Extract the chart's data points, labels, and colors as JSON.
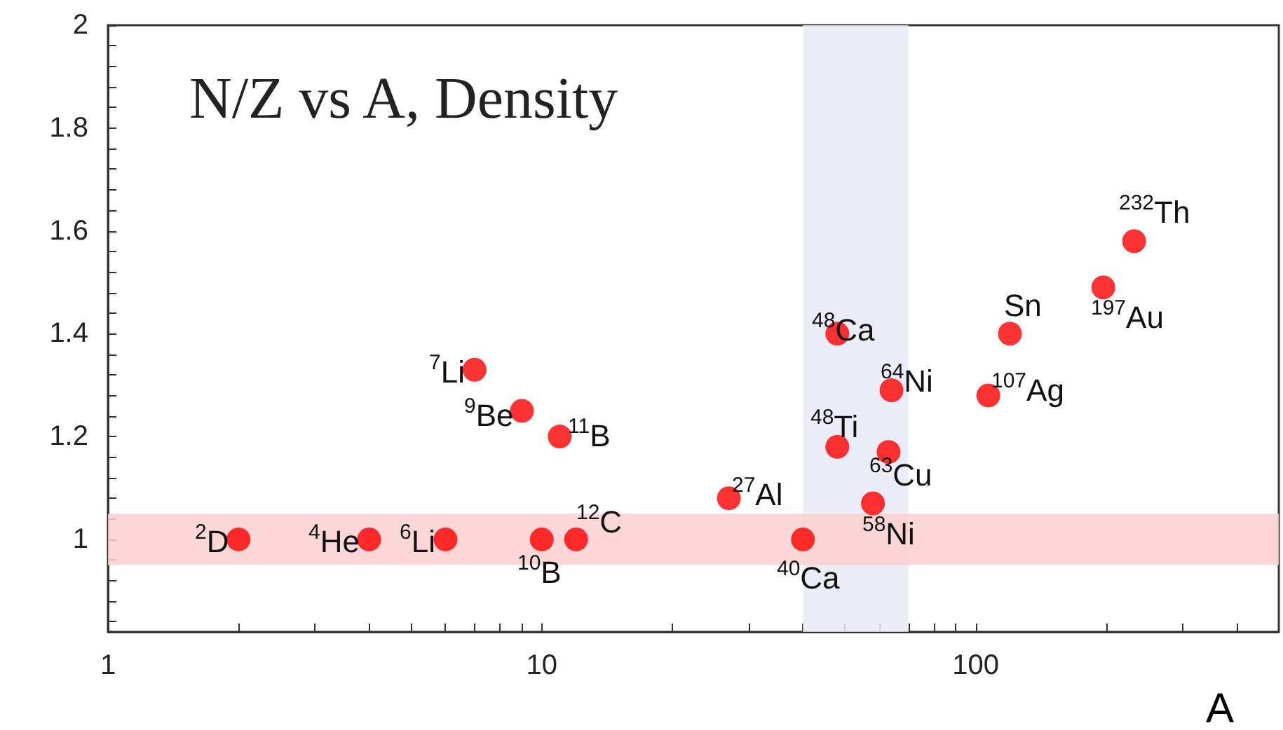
{
  "chart_data": {
    "type": "scatter",
    "title": "N/Z vs A, Density",
    "xlabel": "A",
    "log": "x",
    "marker": "circle",
    "grid": false,
    "xlim": [
      1,
      500
    ],
    "xticks": [
      1,
      {
        "value": 2,
        "label": null
      },
      {
        "value": 3,
        "label": null
      },
      {
        "value": 4,
        "label": null
      },
      {
        "value": 5,
        "label": null
      },
      {
        "value": 6,
        "label": null
      },
      {
        "value": 7,
        "label": null
      },
      {
        "value": 8,
        "label": null
      },
      {
        "value": 9,
        "label": null
      },
      10,
      {
        "value": 20,
        "label": null
      },
      {
        "value": 30,
        "label": null
      },
      {
        "value": 40,
        "label": null
      },
      {
        "value": 50,
        "label": null
      },
      {
        "value": 60,
        "label": null
      },
      {
        "value": 70,
        "label": null
      },
      {
        "value": 80,
        "label": null
      },
      {
        "value": 90,
        "label": null
      },
      100,
      {
        "value": 200,
        "label": null
      },
      {
        "value": 300,
        "label": null
      },
      {
        "value": 400,
        "label": null
      }
    ],
    "ylim": [
      0.82,
      2
    ],
    "yticks": [
      {
        "value": 0.84,
        "label": null
      },
      {
        "value": 0.88,
        "label": null
      },
      {
        "value": 0.92,
        "label": null
      },
      {
        "value": 0.96,
        "label": null
      },
      1,
      {
        "value": 1.04,
        "label": null
      },
      {
        "value": 1.08,
        "label": null
      },
      {
        "value": 1.12,
        "label": null
      },
      {
        "value": 1.16,
        "label": null
      },
      1.2,
      {
        "value": 1.24,
        "label": null
      },
      {
        "value": 1.28,
        "label": null
      },
      {
        "value": 1.32,
        "label": null
      },
      {
        "value": 1.36,
        "label": null
      },
      1.4,
      {
        "value": 1.44,
        "label": null
      },
      {
        "value": 1.48,
        "label": null
      },
      {
        "value": 1.52,
        "label": null
      },
      {
        "value": 1.56,
        "label": null
      },
      1.6,
      {
        "value": 1.64,
        "label": null
      },
      {
        "value": 1.68,
        "label": null
      },
      {
        "value": 1.72,
        "label": null
      },
      {
        "value": 1.76,
        "label": null
      },
      1.8,
      {
        "value": 1.84,
        "label": null
      },
      {
        "value": 1.88,
        "label": null
      },
      {
        "value": 1.92,
        "label": null
      },
      {
        "value": 1.96,
        "label": null
      },
      2
    ],
    "bands": [
      {
        "axis": "x",
        "from": 40,
        "to": 70,
        "color": "#e9e9f6"
      },
      {
        "axis": "y",
        "from": 0.95,
        "to": 1.05,
        "color": "#fdd0d0"
      }
    ],
    "series": [
      {
        "color": "#ff0000",
        "x": [
          2,
          4,
          6,
          7,
          9,
          11,
          10,
          12,
          27,
          40,
          48,
          48,
          58,
          63,
          64,
          107,
          120,
          197,
          232
        ],
        "values": [
          1,
          1,
          1,
          1.33,
          1.25,
          1.2,
          1,
          1,
          1.08,
          1,
          1.4,
          1.18,
          1.07,
          1.17,
          1.29,
          1.28,
          1.4,
          1.49,
          1.58
        ]
      }
    ],
    "annotations": [
      {
        "text": "$^{2}$D",
        "x": 2,
        "y": 1
      },
      {
        "text": "$^{4}$He",
        "x": 4,
        "y": 1
      },
      {
        "text": "$^{6}$Li",
        "x": 6,
        "y": 1
      },
      {
        "text": "$^{7}$Li",
        "x": 7,
        "y": 1.33
      },
      {
        "text": "$^{9}$Be",
        "x": 9,
        "y": 1.25
      },
      {
        "text": "$^{11}$B",
        "x": 11,
        "y": 1.2
      },
      {
        "text": "$^{10}$B",
        "x": 10,
        "y": 1
      },
      {
        "text": "$^{12}$C",
        "x": 12,
        "y": 1
      },
      {
        "text": "$^{27}$Al",
        "x": 27,
        "y": 1.08
      },
      {
        "text": "$^{40}$Ca",
        "x": 40,
        "y": 1
      },
      {
        "text": "$^{48}$Ca",
        "x": 48,
        "y": 1.4
      },
      {
        "text": "$^{48}$Ti",
        "x": 48,
        "y": 1.18
      },
      {
        "text": "$^{58}$Ni",
        "x": 58,
        "y": 1.07
      },
      {
        "text": "$^{63}$Cu",
        "x": 63,
        "y": 1.17
      },
      {
        "text": "$^{64}$Ni",
        "x": 64,
        "y": 1.29
      },
      {
        "text": "$^{107}$Ag",
        "x": 107,
        "y": 1.28
      },
      {
        "text": "Sn",
        "x": 120,
        "y": 1.4
      },
      {
        "text": "$^{197}$Au",
        "x": 197,
        "y": 1.49
      },
      {
        "text": "$^{232}$Th",
        "x": 232,
        "y": 1.58
      }
    ]
  }
}
